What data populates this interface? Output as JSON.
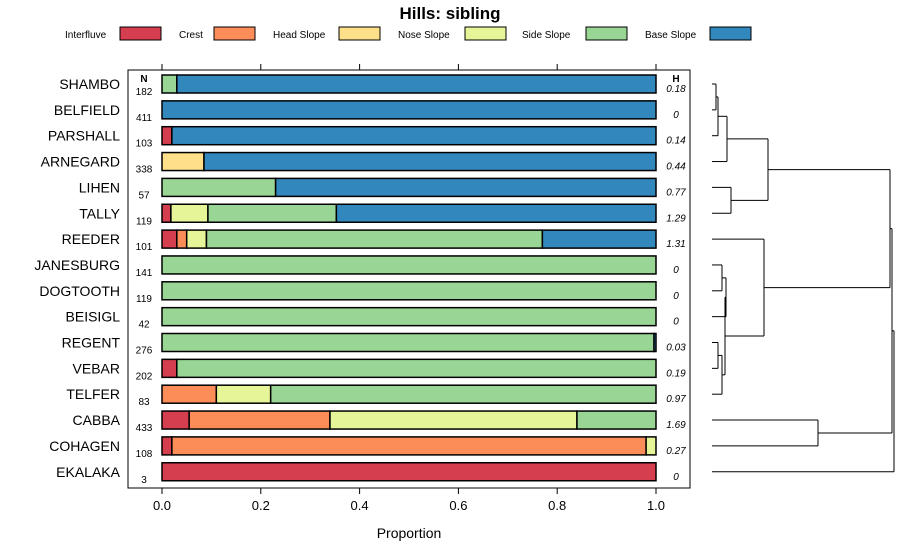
{
  "chart_data": {
    "type": "bar",
    "orientation": "horizontal",
    "stacked": true,
    "title": "Hills: sibling",
    "xlabel": "Proportion",
    "ylabel": "",
    "xlim": [
      0,
      1
    ],
    "xticks": [
      0.0,
      0.2,
      0.4,
      0.6,
      0.8,
      1.0
    ],
    "xtick_labels": [
      "0.0",
      "0.2",
      "0.4",
      "0.6",
      "0.8",
      "1.0"
    ],
    "n_header": "N",
    "h_header": "H",
    "legend": [
      {
        "name": "Interfluve",
        "color": "#d53e4f"
      },
      {
        "name": "Crest",
        "color": "#fc8d59"
      },
      {
        "name": "Head Slope",
        "color": "#fee08b"
      },
      {
        "name": "Nose Slope",
        "color": "#e6f598"
      },
      {
        "name": "Side Slope",
        "color": "#99d594"
      },
      {
        "name": "Base Slope",
        "color": "#3288bd"
      }
    ],
    "rows": [
      {
        "name": "SHAMBO",
        "n": "182",
        "h": "0.18",
        "values": [
          0,
          0,
          0,
          0,
          0.03,
          0.97
        ]
      },
      {
        "name": "BELFIELD",
        "n": "411",
        "h": "0",
        "values": [
          0,
          0,
          0,
          0,
          0,
          1.0
        ]
      },
      {
        "name": "PARSHALL",
        "n": "103",
        "h": "0.14",
        "values": [
          0.02,
          0,
          0,
          0,
          0,
          0.98
        ]
      },
      {
        "name": "ARNEGARD",
        "n": "338",
        "h": "0.44",
        "values": [
          0,
          0,
          0.085,
          0,
          0,
          0.915
        ]
      },
      {
        "name": "LIHEN",
        "n": "57",
        "h": "0.77",
        "values": [
          0,
          0,
          0,
          0,
          0.23,
          0.77
        ]
      },
      {
        "name": "TALLY",
        "n": "119",
        "h": "1.29",
        "values": [
          0.018,
          0,
          0,
          0.075,
          0.26,
          0.647
        ]
      },
      {
        "name": "REEDER",
        "n": "101",
        "h": "1.31",
        "values": [
          0.03,
          0.02,
          0,
          0.04,
          0.68,
          0.23
        ]
      },
      {
        "name": "JANESBURG",
        "n": "141",
        "h": "0",
        "values": [
          0,
          0,
          0,
          0,
          1.0,
          0
        ]
      },
      {
        "name": "DOGTOOTH",
        "n": "119",
        "h": "0",
        "values": [
          0,
          0,
          0,
          0,
          1.0,
          0
        ]
      },
      {
        "name": "BEISIGL",
        "n": "42",
        "h": "0",
        "values": [
          0,
          0,
          0,
          0,
          1.0,
          0
        ]
      },
      {
        "name": "REGENT",
        "n": "276",
        "h": "0.03",
        "values": [
          0,
          0,
          0,
          0,
          0.996,
          0.004
        ]
      },
      {
        "name": "VEBAR",
        "n": "202",
        "h": "0.19",
        "values": [
          0.03,
          0,
          0,
          0,
          0.97,
          0
        ]
      },
      {
        "name": "TELFER",
        "n": "83",
        "h": "0.97",
        "values": [
          0,
          0.11,
          0,
          0.11,
          0.78,
          0
        ]
      },
      {
        "name": "CABBA",
        "n": "433",
        "h": "1.69",
        "values": [
          0.055,
          0.285,
          0,
          0.5,
          0.16,
          0
        ]
      },
      {
        "name": "COHAGEN",
        "n": "108",
        "h": "0.27",
        "values": [
          0.02,
          0.96,
          0,
          0.02,
          0,
          0
        ]
      },
      {
        "name": "EKALAKA",
        "n": "3",
        "h": "0",
        "values": [
          1.0,
          0,
          0,
          0,
          0,
          0
        ]
      }
    ]
  }
}
